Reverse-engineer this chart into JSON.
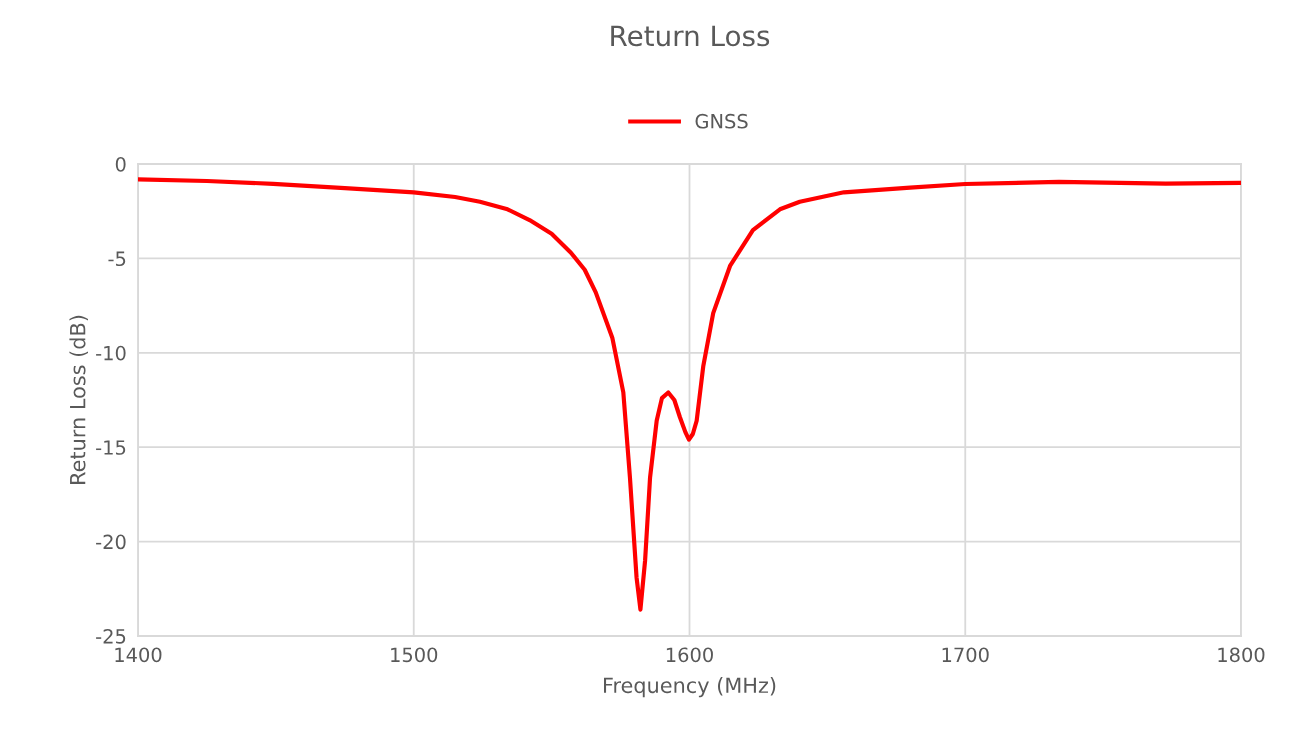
{
  "chart_data": {
    "type": "line",
    "title": "Return Loss",
    "xlabel": "Frequency (MHz)",
    "ylabel": "Return Loss (dB)",
    "x": [
      1400,
      1425,
      1449,
      1475,
      1500,
      1515,
      1524,
      1534,
      1542,
      1550,
      1557,
      1562,
      1566,
      1572,
      1576,
      1578.4,
      1580.8,
      1582.2,
      1583.9,
      1585.7,
      1588.1,
      1590,
      1592.3,
      1594.5,
      1596.5,
      1598.5,
      1599.8,
      1601.2,
      1602.6,
      1605,
      1608.6,
      1614.7,
      1623,
      1632.8,
      1640,
      1656,
      1680,
      1700,
      1734,
      1772.7,
      1800
    ],
    "series": [
      {
        "name": "GNSS",
        "color": "#ff0000",
        "values": [
          -0.81,
          -0.9,
          -1.05,
          -1.28,
          -1.5,
          -1.75,
          -2.0,
          -2.4,
          -2.97,
          -3.7,
          -4.7,
          -5.6,
          -6.8,
          -9.2,
          -12.1,
          -16.6,
          -21.9,
          -23.6,
          -21.0,
          -16.6,
          -13.6,
          -12.4,
          -12.1,
          -12.5,
          -13.4,
          -14.2,
          -14.6,
          -14.3,
          -13.6,
          -10.7,
          -7.9,
          -5.4,
          -3.5,
          -2.4,
          -2.0,
          -1.5,
          -1.25,
          -1.06,
          -0.95,
          -1.04,
          -1.0
        ]
      }
    ],
    "xlim": [
      1400,
      1800
    ],
    "xticks": [
      1400,
      1500,
      1600,
      1700,
      1800
    ],
    "ylim": [
      -25,
      0
    ],
    "yticks": [
      -25,
      -20,
      -15,
      -10,
      -5,
      0
    ],
    "grid": true,
    "legend": "top",
    "marker": "none",
    "line_style": "solid"
  }
}
